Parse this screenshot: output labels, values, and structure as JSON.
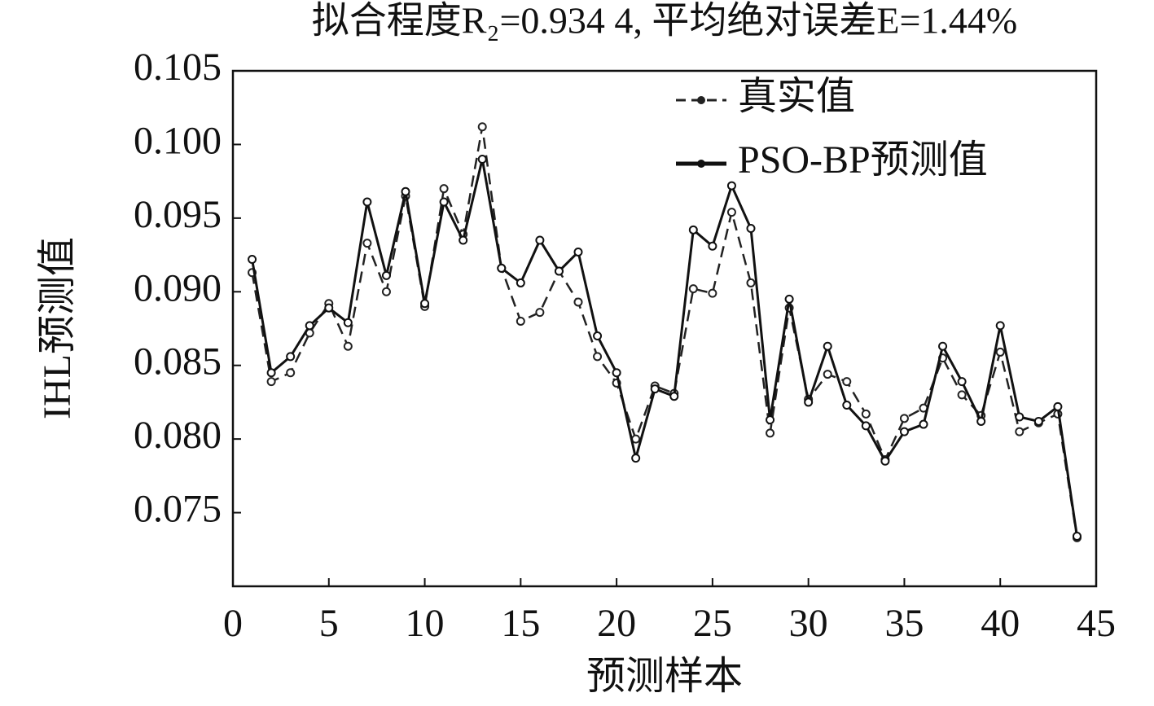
{
  "chart_data": {
    "type": "line",
    "title": "拟合程度R₂=0.934 4, 平均绝对误差E=1.44%",
    "xlabel": "预测样本",
    "ylabel": "IHL预测值",
    "x": [
      1,
      2,
      3,
      4,
      5,
      6,
      7,
      8,
      9,
      10,
      11,
      12,
      13,
      14,
      15,
      16,
      17,
      18,
      19,
      20,
      21,
      22,
      23,
      24,
      25,
      26,
      27,
      28,
      29,
      30,
      31,
      32,
      33,
      34,
      35,
      36,
      37,
      38,
      39,
      40,
      41,
      42,
      43,
      44
    ],
    "series": [
      {
        "name": "真实值",
        "color": "#222222",
        "linestyle": "dashed",
        "values": [
          0.0913,
          0.0839,
          0.0845,
          0.0872,
          0.0892,
          0.0863,
          0.0933,
          0.09,
          0.0965,
          0.089,
          0.097,
          0.0939,
          0.1012,
          0.0916,
          0.088,
          0.0886,
          0.0914,
          0.0893,
          0.0856,
          0.0838,
          0.08,
          0.0836,
          0.0831,
          0.0902,
          0.0899,
          0.0954,
          0.0906,
          0.0804,
          0.0889,
          0.0827,
          0.0844,
          0.0839,
          0.0817,
          0.0786,
          0.0814,
          0.0821,
          0.0855,
          0.083,
          0.0816,
          0.0859,
          0.0805,
          0.0811,
          0.0817,
          0.0733
        ]
      },
      {
        "name": "PSO-BP预测值",
        "color": "#111111",
        "linestyle": "solid",
        "values": [
          0.0922,
          0.0845,
          0.0856,
          0.0877,
          0.0889,
          0.0879,
          0.0961,
          0.0911,
          0.0968,
          0.0892,
          0.0961,
          0.0935,
          0.099,
          0.0916,
          0.0906,
          0.0935,
          0.0914,
          0.0927,
          0.087,
          0.0845,
          0.0787,
          0.0834,
          0.0829,
          0.0942,
          0.0931,
          0.0972,
          0.0943,
          0.0813,
          0.0895,
          0.0825,
          0.0863,
          0.0823,
          0.0809,
          0.0785,
          0.0805,
          0.081,
          0.0863,
          0.0839,
          0.0812,
          0.0877,
          0.0815,
          0.0812,
          0.0822,
          0.0734
        ]
      }
    ],
    "xlim": [
      0,
      45
    ],
    "xticks": [
      0,
      5,
      10,
      15,
      20,
      25,
      30,
      35,
      40,
      45
    ],
    "ylim": [
      0.07,
      0.105
    ],
    "yticks": [
      0.075,
      {
        "value": 0.08,
        "label": "0.080"
      },
      0.085,
      {
        "value": 0.09,
        "label": "0.090"
      },
      0.095,
      {
        "value": 0.1,
        "label": "0.100"
      },
      0.105
    ],
    "grid": false,
    "legend": "upper right"
  }
}
